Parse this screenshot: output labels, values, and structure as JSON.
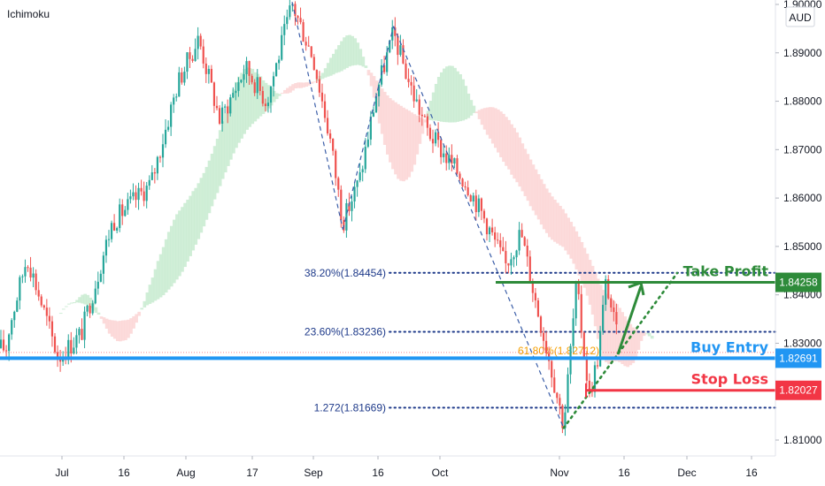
{
  "indicator_label": "Ichimoku",
  "currency": "AUD",
  "colors": {
    "take_profit": "#2e8b3a",
    "buy_entry": "#2196f3",
    "stop_loss": "#f23645",
    "fib": "#1e3a8a",
    "candle_up": "#26a69a",
    "candle_down": "#ef5350",
    "cloud_bull": "#c8ebd0",
    "cloud_bear": "#fbd5d5"
  },
  "chart_data": {
    "type": "candlestick",
    "y_ticks": [
      "1.81000",
      "1.82000",
      "1.83000",
      "1.84000",
      "1.85000",
      "1.86000",
      "1.87000",
      "1.88000",
      "1.89000",
      "1.90000"
    ],
    "x_ticks": [
      "Jul",
      "16",
      "Aug",
      "17",
      "Sep",
      "16",
      "Oct",
      "Nov",
      "16",
      "Dec",
      "16"
    ],
    "ylim": [
      1.8065,
      1.9015
    ],
    "fib_levels": [
      {
        "label": "38.20%(1.84454)",
        "value": 1.84454
      },
      {
        "label": "23.60%(1.83236)",
        "value": 1.83236
      },
      {
        "label": "1.272(1.81669)",
        "value": 1.81669
      }
    ],
    "fib_overlap_label": "61.80%(1.82712)",
    "fib_overlap_value": 1.82712,
    "levels": [
      {
        "name": "Take Profit",
        "value": 1.84258,
        "tag": "1.84258"
      },
      {
        "name": "Buy Entry",
        "value": 1.82691,
        "tag": "1.82691"
      },
      {
        "name": "Stop Loss",
        "value": 1.82027,
        "tag": "1.82027"
      }
    ],
    "swing_points": [
      {
        "date": "Aug 27",
        "price": 1.9005
      },
      {
        "date": "Sep 8",
        "price": 1.8535
      },
      {
        "date": "Sep 20",
        "price": 1.8955
      },
      {
        "date": "Nov 2",
        "price": 1.8125
      },
      {
        "date": "Nov 10",
        "price": 1.8175
      }
    ],
    "price_path": [
      {
        "date": "Jun 17",
        "price": 1.832
      },
      {
        "date": "Jun 22",
        "price": 1.848
      },
      {
        "date": "Jun 30",
        "price": 1.827
      },
      {
        "date": "Jul 6",
        "price": 1.832
      },
      {
        "date": "Jul 14",
        "price": 1.855
      },
      {
        "date": "Jul 24",
        "price": 1.863
      },
      {
        "date": "Jul 31",
        "price": 1.884
      },
      {
        "date": "Aug 5",
        "price": 1.893
      },
      {
        "date": "Aug 10",
        "price": 1.876
      },
      {
        "date": "Aug 16",
        "price": 1.887
      },
      {
        "date": "Aug 21",
        "price": 1.88
      },
      {
        "date": "Aug 27",
        "price": 1.9
      },
      {
        "date": "Sep 1",
        "price": 1.889
      },
      {
        "date": "Sep 5",
        "price": 1.872
      },
      {
        "date": "Sep 8",
        "price": 1.855
      },
      {
        "date": "Sep 12",
        "price": 1.864
      },
      {
        "date": "Sep 16",
        "price": 1.882
      },
      {
        "date": "Sep 20",
        "price": 1.894
      },
      {
        "date": "Sep 24",
        "price": 1.883
      },
      {
        "date": "Sep 28",
        "price": 1.874
      },
      {
        "date": "Oct 3",
        "price": 1.868
      },
      {
        "date": "Oct 8",
        "price": 1.863
      },
      {
        "date": "Oct 13",
        "price": 1.855
      },
      {
        "date": "Oct 18",
        "price": 1.846
      },
      {
        "date": "Oct 22",
        "price": 1.853
      },
      {
        "date": "Oct 26",
        "price": 1.838
      },
      {
        "date": "Oct 29",
        "price": 1.828
      },
      {
        "date": "Nov 2",
        "price": 1.813
      },
      {
        "date": "Nov 5",
        "price": 1.842
      },
      {
        "date": "Nov 8",
        "price": 1.819
      },
      {
        "date": "Nov 10",
        "price": 1.827
      },
      {
        "date": "Nov 12",
        "price": 1.843
      },
      {
        "date": "Nov 15",
        "price": 1.829
      }
    ],
    "xlabel": "",
    "ylabel": ""
  }
}
